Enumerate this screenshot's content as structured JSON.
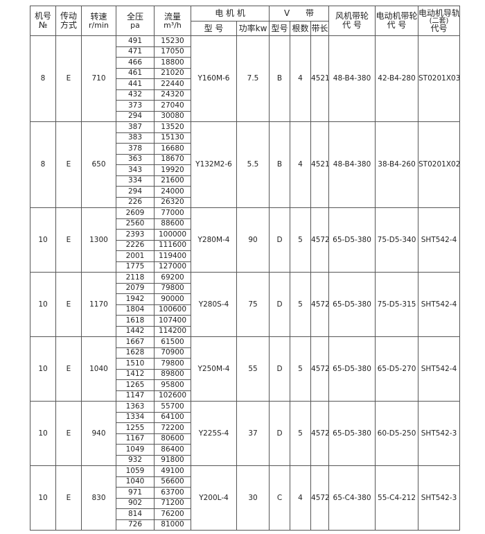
{
  "header": {
    "machine_no": [
      "机号",
      "№"
    ],
    "drive": [
      "传动",
      "方式"
    ],
    "speed": [
      "转速",
      "r/min"
    ],
    "pressure": [
      "全压",
      "pa"
    ],
    "flow": [
      "流量",
      "m³/h"
    ],
    "motor": "电 机 机",
    "motor_model": "型 号",
    "motor_power": "功率kw",
    "vbelt": "V      带",
    "belt_type": "型号",
    "belt_count": "根数",
    "belt_length": "带长",
    "fan_pulley": [
      "风机带轮",
      "代 号"
    ],
    "motor_pulley": [
      "电动机带轮",
      "代 号"
    ],
    "motor_rail": [
      "电动机导轨",
      "(二套)",
      "代号"
    ]
  },
  "groups": [
    {
      "no": "8",
      "drive": "E",
      "speed": "710",
      "pressure": [
        "491",
        "471",
        "466",
        "461",
        "441",
        "432",
        "373",
        "294"
      ],
      "flow": [
        "15230",
        "17050",
        "18800",
        "21020",
        "22440",
        "24320",
        "27040",
        "30080"
      ],
      "motor": "Y160M-6",
      "power": "7.5",
      "belt_type": "B",
      "belt_count": "4",
      "belt_length": "4521",
      "fan_pulley": "48-B4-380",
      "motor_pulley": "42-B4-280",
      "rail": "ST0201X03"
    },
    {
      "no": "8",
      "drive": "E",
      "speed": "650",
      "pressure": [
        "387",
        "383",
        "378",
        "363",
        "343",
        "334",
        "294",
        "226"
      ],
      "flow": [
        "13520",
        "15130",
        "16680",
        "18670",
        "19920",
        "21600",
        "24000",
        "26320"
      ],
      "motor": "Y132M2-6",
      "power": "5.5",
      "belt_type": "B",
      "belt_count": "4",
      "belt_length": "4521",
      "fan_pulley": "48-B4-380",
      "motor_pulley": "38-B4-260",
      "rail": "ST0201X02"
    },
    {
      "no": "10",
      "drive": "E",
      "speed": "1300",
      "pressure": [
        "2609",
        "2560",
        "2393",
        "2226",
        "2001",
        "1775"
      ],
      "flow": [
        "77000",
        "88600",
        "100000",
        "111600",
        "119400",
        "127000"
      ],
      "motor": "Y280M-4",
      "power": "90",
      "belt_type": "D",
      "belt_count": "5",
      "belt_length": "4572",
      "fan_pulley": "65-D5-380",
      "motor_pulley": "75-D5-340",
      "rail": "SHT542-4"
    },
    {
      "no": "10",
      "drive": "E",
      "speed": "1170",
      "pressure": [
        "2118",
        "2079",
        "1942",
        "1804",
        "1618",
        "1442"
      ],
      "flow": [
        "69200",
        "79800",
        "90000",
        "100600",
        "107400",
        "114200"
      ],
      "motor": "Y280S-4",
      "power": "75",
      "belt_type": "D",
      "belt_count": "5",
      "belt_length": "4572",
      "fan_pulley": "65-D5-380",
      "motor_pulley": "75-D5-315",
      "rail": "SHT542-4"
    },
    {
      "no": "10",
      "drive": "E",
      "speed": "1040",
      "pressure": [
        "1667",
        "1628",
        "1510",
        "1412",
        "1265",
        "1147"
      ],
      "flow": [
        "61500",
        "70900",
        "79800",
        "89800",
        "95800",
        "102600"
      ],
      "motor": "Y250M-4",
      "power": "55",
      "belt_type": "D",
      "belt_count": "5",
      "belt_length": "4572",
      "fan_pulley": "65-D5-380",
      "motor_pulley": "65-D5-270",
      "rail": "SHT542-4"
    },
    {
      "no": "10",
      "drive": "E",
      "speed": "940",
      "pressure": [
        "1363",
        "1334",
        "1255",
        "1167",
        "1049",
        "932"
      ],
      "flow": [
        "55700",
        "64100",
        "72200",
        "80600",
        "86400",
        "91800"
      ],
      "motor": "Y225S-4",
      "power": "37",
      "belt_type": "D",
      "belt_count": "5",
      "belt_length": "4572",
      "fan_pulley": "65-D5-380",
      "motor_pulley": "60-D5-250",
      "rail": "SHT542-3"
    },
    {
      "no": "10",
      "drive": "E",
      "speed": "830",
      "pressure": [
        "1059",
        "1040",
        "971",
        "902",
        "814",
        "726"
      ],
      "flow": [
        "49100",
        "56600",
        "63700",
        "71200",
        "76200",
        "81000"
      ],
      "motor": "Y200L-4",
      "power": "30",
      "belt_type": "C",
      "belt_count": "4",
      "belt_length": "4572",
      "fan_pulley": "65-C4-380",
      "motor_pulley": "55-C4-212",
      "rail": "SHT542-3"
    }
  ]
}
